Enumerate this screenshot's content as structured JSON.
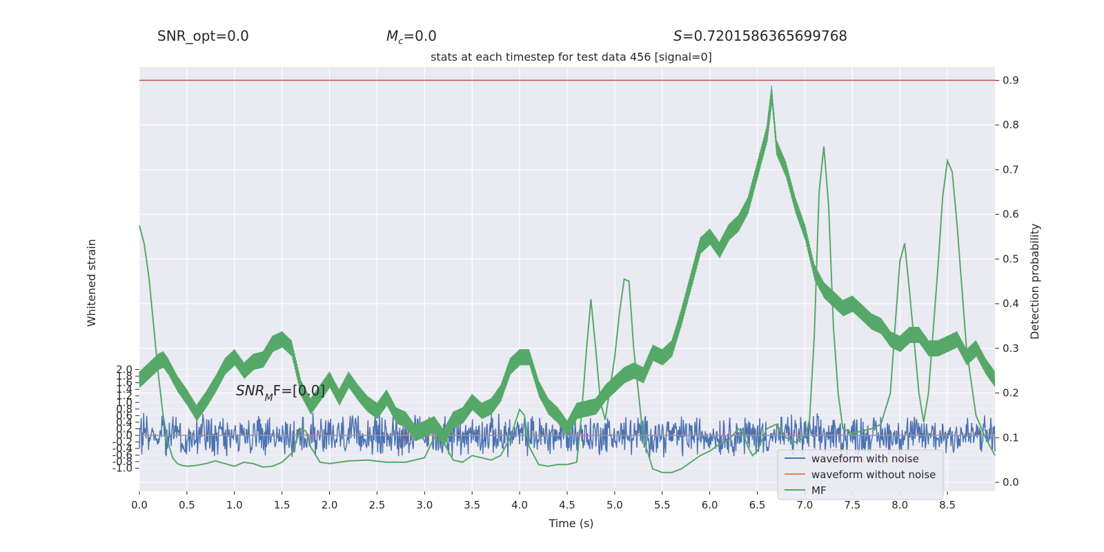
{
  "header": {
    "snr_opt": "SNR_opt=0.0",
    "mc_symbol": "M",
    "mc_sub": "c",
    "mc_value": "=0.0",
    "s_symbol": "S",
    "s_value": "=0.7201586365699768"
  },
  "chart_data": {
    "type": "line",
    "title": "stats at each timestep for test data 456 [signal=0]",
    "xlabel": "Time (s)",
    "ylabel_left": "Whitened strain",
    "ylabel_right": "Detection probability",
    "xlim": [
      0,
      9
    ],
    "ylim_right": [
      -0.02,
      0.93
    ],
    "ylim_left": [
      -1.7,
      11.2
    ],
    "x_ticks": [
      "0.0",
      "0.5",
      "1.0",
      "1.5",
      "2.0",
      "2.5",
      "3.0",
      "3.5",
      "4.0",
      "4.5",
      "5.0",
      "5.5",
      "6.0",
      "6.5",
      "7.0",
      "7.5",
      "8.0",
      "8.5"
    ],
    "y_ticks_right": [
      "0.0",
      "0.1",
      "0.2",
      "0.3",
      "0.4",
      "0.5",
      "0.6",
      "0.7",
      "0.8",
      "0.9"
    ],
    "y_ticks_left": [
      "2.0",
      "1.8",
      "1.6",
      "1.4",
      "1.2",
      "1.0",
      "0.8",
      "0.6",
      "0.4",
      "0.2",
      "0.0",
      "-0.2",
      "-0.4",
      "-0.6",
      "-0.8",
      "-1.0"
    ],
    "threshold": 0.9,
    "annotation": {
      "base": "SNR",
      "sub": "M",
      "rest": "F=[0.0]"
    },
    "legend": {
      "position": "lower-right",
      "entries": [
        "waveform with noise",
        "waveform without noise",
        "MF"
      ]
    },
    "colors": {
      "noise": "#4c72b0",
      "clean": "#dd8452",
      "mf": "#55a868",
      "threshold": "#c44e52",
      "plot_bg": "#eaeaf2",
      "grid": "#ffffff"
    },
    "series": [
      {
        "name": "MF",
        "role": "smooth",
        "x": [
          0.0,
          0.05,
          0.1,
          0.15,
          0.2,
          0.25,
          0.3,
          0.35,
          0.4,
          0.45,
          0.5,
          0.6,
          0.7,
          0.8,
          0.9,
          1.0,
          1.1,
          1.2,
          1.3,
          1.4,
          1.5,
          1.6,
          1.7,
          1.75,
          1.8,
          1.9,
          2.0,
          2.2,
          2.4,
          2.6,
          2.8,
          3.0,
          3.1,
          3.2,
          3.3,
          3.4,
          3.5,
          3.7,
          3.8,
          3.9,
          4.0,
          4.05,
          4.1,
          4.2,
          4.3,
          4.4,
          4.5,
          4.6,
          4.65,
          4.7,
          4.75,
          4.8,
          4.85,
          4.9,
          5.0,
          5.05,
          5.1,
          5.15,
          5.2,
          5.3,
          5.4,
          5.5,
          5.6,
          5.7,
          5.8,
          5.9,
          6.0,
          6.1,
          6.2,
          6.3,
          6.35,
          6.4,
          6.45,
          6.5,
          6.6,
          6.7,
          6.8,
          6.9,
          7.0,
          7.05,
          7.1,
          7.15,
          7.2,
          7.25,
          7.3,
          7.35,
          7.4,
          7.5,
          7.6,
          7.7,
          7.8,
          7.9,
          7.95,
          8.0,
          8.05,
          8.1,
          8.2,
          8.25,
          8.3,
          8.4,
          8.45,
          8.5,
          8.55,
          8.6,
          8.7,
          8.8,
          8.9,
          9.0
        ],
        "y": [
          0.575,
          0.535,
          0.46,
          0.35,
          0.24,
          0.15,
          0.09,
          0.055,
          0.042,
          0.038,
          0.036,
          0.038,
          0.042,
          0.048,
          0.042,
          0.036,
          0.045,
          0.042,
          0.034,
          0.036,
          0.045,
          0.065,
          0.12,
          0.115,
          0.08,
          0.045,
          0.042,
          0.048,
          0.05,
          0.045,
          0.045,
          0.055,
          0.1,
          0.09,
          0.05,
          0.045,
          0.06,
          0.05,
          0.06,
          0.1,
          0.163,
          0.15,
          0.08,
          0.04,
          0.036,
          0.04,
          0.04,
          0.045,
          0.15,
          0.29,
          0.41,
          0.3,
          0.18,
          0.14,
          0.28,
          0.38,
          0.455,
          0.45,
          0.3,
          0.1,
          0.03,
          0.022,
          0.022,
          0.03,
          0.045,
          0.06,
          0.07,
          0.085,
          0.095,
          0.12,
          0.11,
          0.08,
          0.06,
          0.07,
          0.12,
          0.13,
          0.1,
          0.09,
          0.1,
          0.14,
          0.33,
          0.65,
          0.752,
          0.62,
          0.35,
          0.2,
          0.12,
          0.11,
          0.115,
          0.12,
          0.13,
          0.2,
          0.35,
          0.495,
          0.535,
          0.43,
          0.2,
          0.135,
          0.2,
          0.48,
          0.64,
          0.72,
          0.695,
          0.58,
          0.3,
          0.15,
          0.1,
          0.06
        ]
      },
      {
        "name": "Detection probability",
        "role": "noisy",
        "x": [
          0.0,
          0.1,
          0.2,
          0.25,
          0.3,
          0.4,
          0.5,
          0.6,
          0.7,
          0.8,
          0.9,
          1.0,
          1.1,
          1.2,
          1.3,
          1.4,
          1.5,
          1.6,
          1.7,
          1.8,
          1.9,
          2.0,
          2.1,
          2.2,
          2.3,
          2.4,
          2.5,
          2.6,
          2.7,
          2.8,
          2.9,
          3.0,
          3.1,
          3.2,
          3.3,
          3.4,
          3.5,
          3.6,
          3.7,
          3.8,
          3.9,
          4.0,
          4.1,
          4.2,
          4.3,
          4.4,
          4.5,
          4.6,
          4.7,
          4.8,
          4.9,
          5.0,
          5.1,
          5.2,
          5.3,
          5.4,
          5.5,
          5.6,
          5.7,
          5.8,
          5.9,
          6.0,
          6.1,
          6.2,
          6.3,
          6.4,
          6.5,
          6.6,
          6.65,
          6.7,
          6.8,
          6.9,
          7.0,
          7.1,
          7.2,
          7.3,
          7.4,
          7.5,
          7.6,
          7.7,
          7.8,
          7.9,
          8.0,
          8.1,
          8.2,
          8.3,
          8.4,
          8.5,
          8.6,
          8.7,
          8.8,
          8.9,
          9.0
        ],
        "y": [
          0.23,
          0.25,
          0.27,
          0.275,
          0.26,
          0.22,
          0.19,
          0.155,
          0.185,
          0.22,
          0.26,
          0.28,
          0.25,
          0.27,
          0.275,
          0.31,
          0.32,
          0.3,
          0.21,
          0.17,
          0.2,
          0.23,
          0.19,
          0.23,
          0.2,
          0.175,
          0.16,
          0.19,
          0.15,
          0.14,
          0.11,
          0.12,
          0.13,
          0.1,
          0.14,
          0.15,
          0.18,
          0.16,
          0.17,
          0.2,
          0.26,
          0.28,
          0.28,
          0.21,
          0.17,
          0.15,
          0.12,
          0.16,
          0.165,
          0.17,
          0.2,
          0.22,
          0.24,
          0.25,
          0.24,
          0.29,
          0.28,
          0.3,
          0.37,
          0.45,
          0.53,
          0.55,
          0.52,
          0.56,
          0.58,
          0.62,
          0.7,
          0.78,
          0.87,
          0.75,
          0.7,
          0.62,
          0.56,
          0.47,
          0.43,
          0.41,
          0.39,
          0.4,
          0.38,
          0.36,
          0.35,
          0.32,
          0.31,
          0.33,
          0.33,
          0.3,
          0.3,
          0.31,
          0.32,
          0.28,
          0.3,
          0.26,
          0.23
        ]
      }
    ]
  }
}
